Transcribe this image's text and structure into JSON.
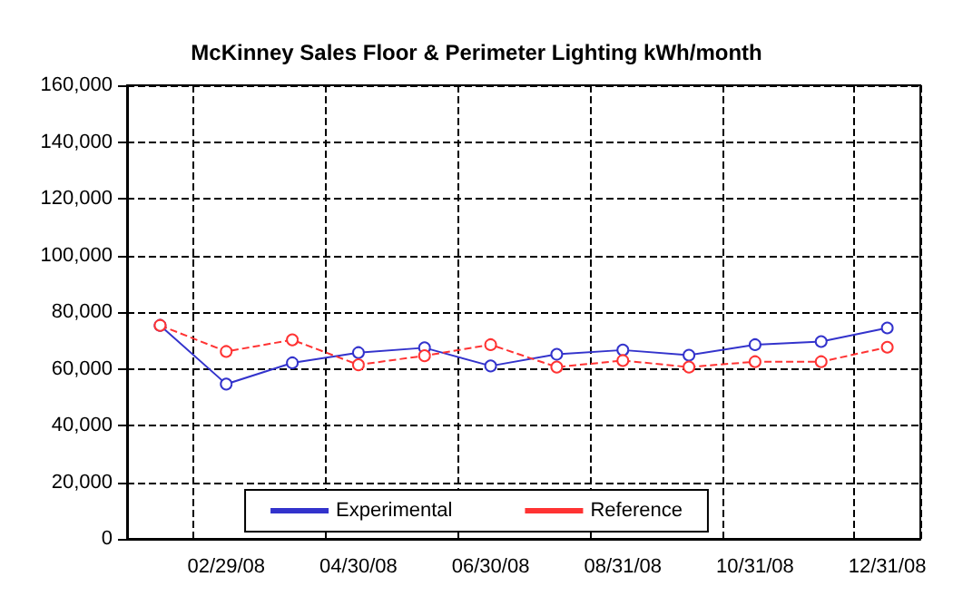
{
  "chart_data": {
    "type": "line",
    "title": "McKinney Sales Floor & Perimeter Lighting kWh/month",
    "categories": [
      null,
      "02/29/08",
      null,
      "04/30/08",
      null,
      "06/30/08",
      null,
      "08/31/08",
      null,
      "10/31/08",
      null,
      "12/31/08"
    ],
    "series": [
      {
        "name": "Experimental",
        "color": "#3333cc",
        "line_style": "solid",
        "values": [
          75300,
          54600,
          62100,
          65700,
          67400,
          61000,
          65100,
          66600,
          64800,
          68500,
          69600,
          74400
        ]
      },
      {
        "name": "Reference",
        "color": "#ff3333",
        "line_style": "dashed",
        "values": [
          75300,
          66100,
          70200,
          61400,
          64600,
          68500,
          60600,
          62900,
          60600,
          62500,
          62500,
          67600
        ]
      }
    ],
    "ylim": [
      0,
      160000
    ],
    "yticks": [
      0,
      {
        "value": 20000,
        "label": "20,000"
      },
      {
        "value": 40000,
        "label": "40,000"
      },
      {
        "value": 60000,
        "label": "60,000"
      },
      {
        "value": 80000,
        "label": "80,000"
      },
      {
        "value": 100000,
        "label": "100,000"
      },
      {
        "value": 120000,
        "label": "120,000"
      },
      {
        "value": 140000,
        "label": "140,000"
      },
      {
        "value": 160000,
        "label": "160,000"
      }
    ],
    "grid": true,
    "legend": "bottom",
    "marker": "circle"
  }
}
